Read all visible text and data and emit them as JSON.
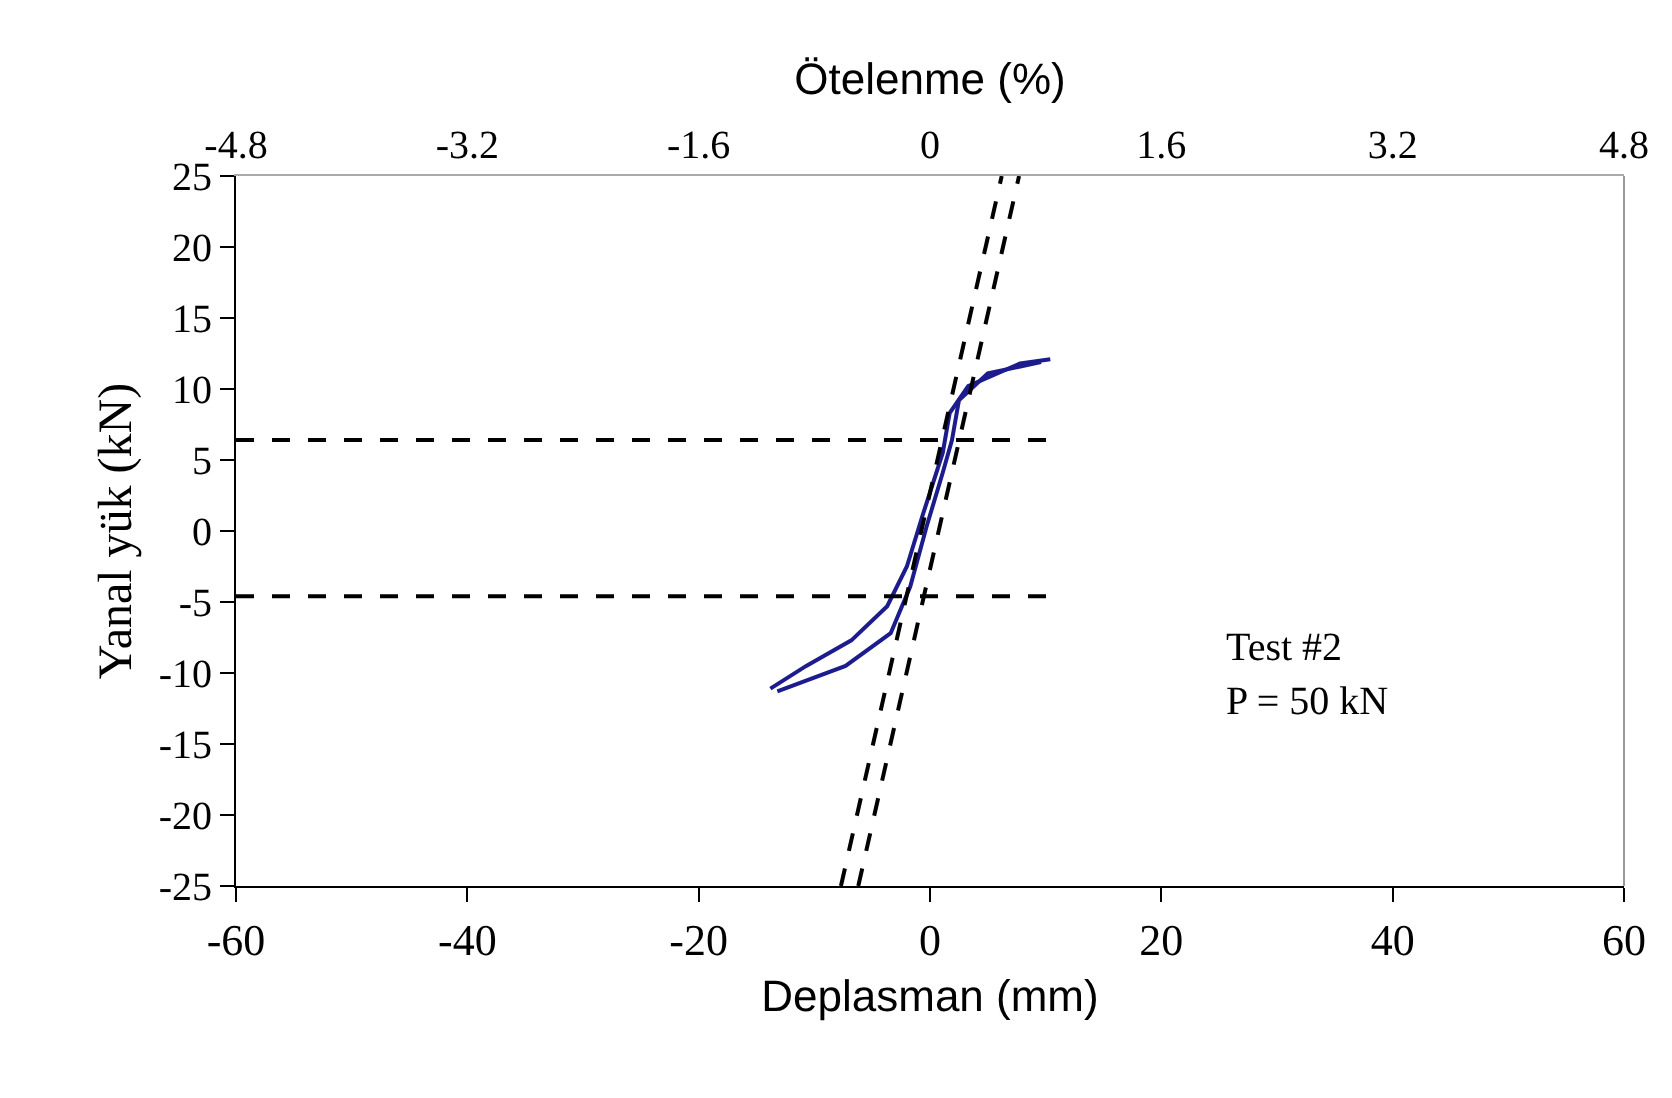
{
  "chart_data": {
    "type": "line",
    "xlabel": "Deplasman (mm)",
    "ylabel": "Yanal yük (kN)",
    "x2label": "Ötelenme (%)",
    "xlim": [
      -60,
      60
    ],
    "xticks": [
      -60,
      -40,
      -20,
      0,
      20,
      40,
      60
    ],
    "ylim": [
      -25,
      25
    ],
    "yticks": [
      -25,
      -20,
      -15,
      -10,
      -5,
      0,
      5,
      10,
      15,
      20,
      25
    ],
    "x2lim": [
      -4.8,
      4.8
    ],
    "x2ticks": [
      -4.8,
      -3.2,
      -1.6,
      0,
      1.6,
      3.2,
      4.8
    ],
    "grid": false,
    "marker": "none",
    "line_style": "solid",
    "series": [
      {
        "color": "#1c1c8c",
        "x": [
          -13.8,
          -10.7,
          -6.8,
          -3.7,
          -2.0,
          -0.6,
          1.1,
          1.7,
          3.3,
          7.8,
          10.4
        ],
        "values": [
          -11.1,
          -9.5,
          -7.7,
          -5.3,
          -2.5,
          1.2,
          5.5,
          8.3,
          10.2,
          11.8,
          12.1
        ]
      },
      {
        "color": "#1c1c8c",
        "x": [
          -13.2,
          -7.3,
          -3.4,
          -1.7,
          -0.3,
          1.1,
          1.9,
          2.5,
          5,
          9.6
        ],
        "values": [
          -11.3,
          -9.5,
          -7.2,
          -3.9,
          0.3,
          4.1,
          6.4,
          9.2,
          11.1,
          11.9
        ]
      },
      {
        "color": "#000000",
        "line_style": "dashed",
        "x": [
          -60,
          10.4
        ],
        "values": [
          6.4,
          6.4
        ]
      },
      {
        "color": "#000000",
        "line_style": "dashed",
        "x": [
          -60,
          10.4
        ],
        "values": [
          -4.6,
          -4.6
        ]
      },
      {
        "color": "#000000",
        "line_style": "dashed",
        "x": [
          -7.7,
          6.2
        ],
        "values": [
          -25,
          25
        ]
      },
      {
        "color": "#000000",
        "line_style": "dashed",
        "x": [
          -6.2,
          7.7
        ],
        "values": [
          -25,
          25
        ]
      }
    ],
    "annotations": [
      "Test #2",
      "P = 50 kN"
    ]
  }
}
